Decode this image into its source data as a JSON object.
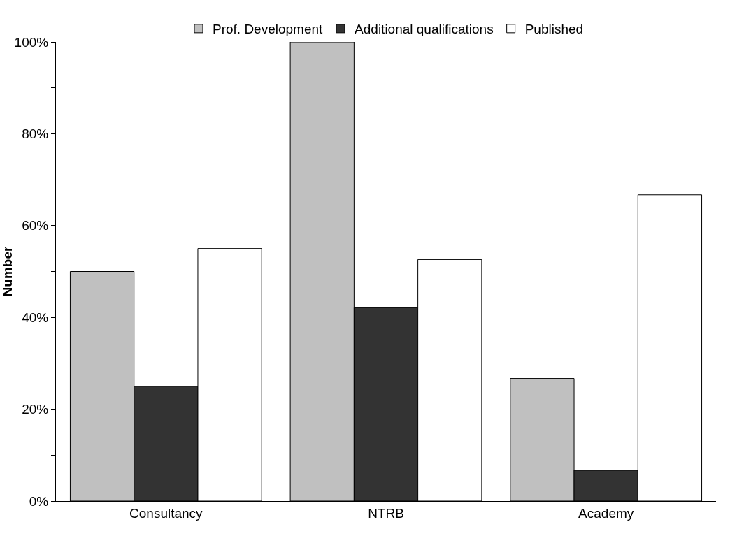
{
  "chart_data": {
    "type": "bar",
    "ylabel": "Number",
    "categories": [
      "Consultancy",
      "NTRB",
      "Academy"
    ],
    "series": [
      {
        "name": "Prof. Development",
        "color": "#c0c0c0",
        "values": [
          50,
          100,
          26.7
        ]
      },
      {
        "name": "Additional qualifications",
        "color": "#333333",
        "values": [
          25,
          42.1,
          6.7
        ]
      },
      {
        "name": "Published",
        "color": "#ffffff",
        "values": [
          55,
          52.6,
          66.7
        ]
      }
    ],
    "ylim": [
      0,
      100
    ],
    "yticks": [
      {
        "value": 0,
        "label": "0%"
      },
      {
        "value": 10,
        "label": null
      },
      {
        "value": 20,
        "label": "20%"
      },
      {
        "value": 30,
        "label": null
      },
      {
        "value": 40,
        "label": "40%"
      },
      {
        "value": 50,
        "label": null
      },
      {
        "value": 60,
        "label": "60%"
      },
      {
        "value": 70,
        "label": null
      },
      {
        "value": 80,
        "label": "80%"
      },
      {
        "value": 90,
        "label": null
      },
      {
        "value": 100,
        "label": "100%"
      }
    ],
    "legend": "top"
  }
}
